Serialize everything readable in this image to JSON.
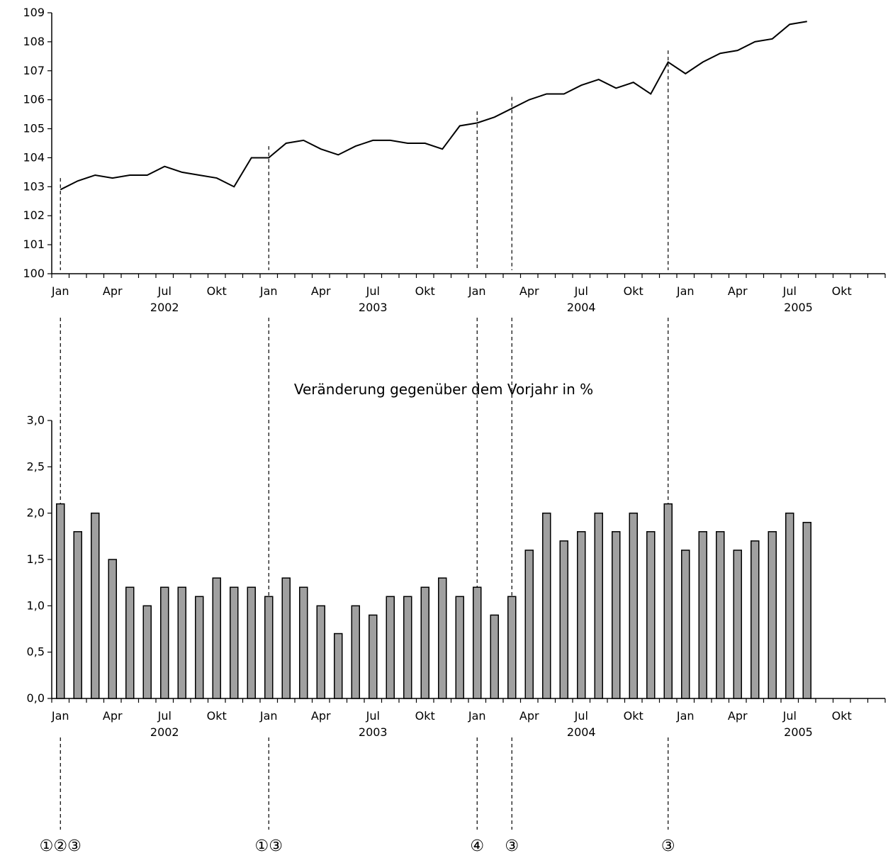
{
  "chart_data": [
    {
      "type": "line",
      "title": "",
      "ylim": [
        100,
        109
      ],
      "yticks": [
        "100",
        "101",
        "102",
        "103",
        "104",
        "105",
        "106",
        "107",
        "108",
        "109"
      ],
      "x_month_labels": [
        "Jan",
        "Apr",
        "Jul",
        "Okt",
        "Jan",
        "Apr",
        "Jul",
        "Okt",
        "Jan",
        "Apr",
        "Jul",
        "Okt",
        "Jan",
        "Apr",
        "Jul",
        "Okt"
      ],
      "x_year_labels": [
        "2002",
        "2003",
        "2004",
        "2005"
      ],
      "months": [
        "2002-01",
        "2002-02",
        "2002-03",
        "2002-04",
        "2002-05",
        "2002-06",
        "2002-07",
        "2002-08",
        "2002-09",
        "2002-10",
        "2002-11",
        "2002-12",
        "2003-01",
        "2003-02",
        "2003-03",
        "2003-04",
        "2003-05",
        "2003-06",
        "2003-07",
        "2003-08",
        "2003-09",
        "2003-10",
        "2003-11",
        "2003-12",
        "2004-01",
        "2004-02",
        "2004-03",
        "2004-04",
        "2004-05",
        "2004-06",
        "2004-07",
        "2004-08",
        "2004-09",
        "2004-10",
        "2004-11",
        "2004-12",
        "2005-01",
        "2005-02",
        "2005-03",
        "2005-04",
        "2005-05",
        "2005-06",
        "2005-07",
        "2005-08"
      ],
      "values": [
        102.9,
        103.2,
        103.4,
        103.3,
        103.4,
        103.4,
        103.7,
        103.5,
        103.4,
        103.3,
        103.0,
        104.0,
        104.0,
        104.5,
        104.6,
        104.3,
        104.1,
        104.4,
        104.6,
        104.6,
        104.5,
        104.5,
        104.3,
        105.1,
        105.2,
        105.4,
        105.7,
        106.0,
        106.2,
        106.2,
        106.5,
        106.7,
        106.4,
        106.6,
        106.2,
        107.3,
        106.9,
        107.3,
        107.6,
        107.7,
        108.0,
        108.1,
        108.6,
        108.7
      ]
    },
    {
      "type": "bar",
      "title": "Veränderung gegenüber dem Vorjahr in %",
      "ylim": [
        0,
        3
      ],
      "yticks": [
        "0,0",
        "0,5",
        "1,0",
        "1,5",
        "2,0",
        "2,5",
        "3,0"
      ],
      "x_month_labels": [
        "Jan",
        "Apr",
        "Jul",
        "Okt",
        "Jan",
        "Apr",
        "Jul",
        "Okt",
        "Jan",
        "Apr",
        "Jul",
        "Okt",
        "Jan",
        "Apr",
        "Jul",
        "Okt"
      ],
      "x_year_labels": [
        "2002",
        "2003",
        "2004",
        "2005"
      ],
      "months": [
        "2002-01",
        "2002-02",
        "2002-03",
        "2002-04",
        "2002-05",
        "2002-06",
        "2002-07",
        "2002-08",
        "2002-09",
        "2002-10",
        "2002-11",
        "2002-12",
        "2003-01",
        "2003-02",
        "2003-03",
        "2003-04",
        "2003-05",
        "2003-06",
        "2003-07",
        "2003-08",
        "2003-09",
        "2003-10",
        "2003-11",
        "2003-12",
        "2004-01",
        "2004-02",
        "2004-03",
        "2004-04",
        "2004-05",
        "2004-06",
        "2004-07",
        "2004-08",
        "2004-09",
        "2004-10",
        "2004-11",
        "2004-12",
        "2005-01",
        "2005-02",
        "2005-03",
        "2005-04",
        "2005-05",
        "2005-06",
        "2005-07",
        "2005-08"
      ],
      "values": [
        2.1,
        1.8,
        2.0,
        1.5,
        1.2,
        1.0,
        1.2,
        1.2,
        1.1,
        1.3,
        1.2,
        1.2,
        1.1,
        1.3,
        1.2,
        1.0,
        0.7,
        1.0,
        0.9,
        1.1,
        1.1,
        1.2,
        1.3,
        1.1,
        1.2,
        0.9,
        1.1,
        1.6,
        2.0,
        1.7,
        1.8,
        2.0,
        1.8,
        2.0,
        1.8,
        2.1,
        1.6,
        1.8,
        1.8,
        1.6,
        1.7,
        1.8,
        2.0,
        1.9
      ],
      "bar_color": "#a0a0a0"
    }
  ],
  "event_markers": [
    {
      "month": "2002-01",
      "label": "①②③"
    },
    {
      "month": "2003-01",
      "label": "①③"
    },
    {
      "month": "2004-01",
      "label": "④"
    },
    {
      "month": "2004-03",
      "label": "③"
    },
    {
      "month": "2004-12",
      "label": "③"
    }
  ]
}
